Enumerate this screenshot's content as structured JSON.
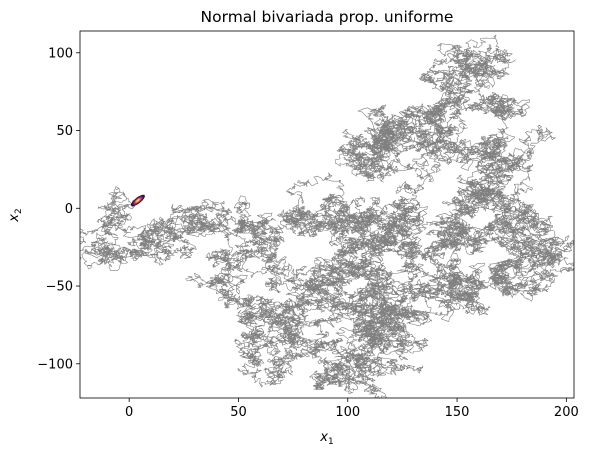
{
  "chart_data": {
    "type": "line",
    "title": "Normal bivariada prop. uniforme",
    "xlabel": "x",
    "xlabel_sub": "1",
    "ylabel": "x",
    "ylabel_sub": "2",
    "xlim": [
      -22.5,
      203.5
    ],
    "ylim": [
      -122,
      114
    ],
    "xticks": [
      0,
      50,
      100,
      150,
      200
    ],
    "xtick_labels": [
      "0",
      "50",
      "100",
      "150",
      "200"
    ],
    "yticks": [
      100,
      50,
      0,
      -50,
      -100
    ],
    "ytick_labels": [
      "100",
      "50",
      "0",
      "−50",
      "−100"
    ],
    "grid": false,
    "series": [
      {
        "kind": "random-walk-trace",
        "color": "#808080",
        "waypoints": [
          [
            0,
            0
          ],
          [
            -4,
            -5
          ],
          [
            -10,
            -12
          ],
          [
            -12,
            -22
          ],
          [
            -10,
            -32
          ],
          [
            -5,
            -30
          ],
          [
            5,
            -20
          ],
          [
            10,
            -18
          ],
          [
            18,
            -25
          ],
          [
            25,
            -22
          ],
          [
            28,
            -10
          ],
          [
            25,
            0
          ],
          [
            32,
            -5
          ],
          [
            38,
            -15
          ],
          [
            40,
            -30
          ],
          [
            42,
            -45
          ],
          [
            45,
            -55
          ],
          [
            55,
            -60
          ],
          [
            65,
            -58
          ],
          [
            75,
            -60
          ],
          [
            80,
            -65
          ],
          [
            72,
            -75
          ],
          [
            65,
            -85
          ],
          [
            75,
            -95
          ],
          [
            85,
            -90
          ],
          [
            95,
            -80
          ],
          [
            105,
            -75
          ],
          [
            110,
            -65
          ],
          [
            115,
            -62
          ],
          [
            120,
            -70
          ],
          [
            115,
            -85
          ],
          [
            108,
            -95
          ],
          [
            100,
            -100
          ],
          [
            108,
            -108
          ],
          [
            115,
            -100
          ],
          [
            120,
            -85
          ],
          [
            125,
            -75
          ],
          [
            130,
            -60
          ],
          [
            135,
            -50
          ],
          [
            140,
            -45
          ],
          [
            150,
            -50
          ],
          [
            158,
            -45
          ],
          [
            165,
            -40
          ],
          [
            175,
            -45
          ],
          [
            185,
            -40
          ],
          [
            190,
            -30
          ],
          [
            182,
            -20
          ],
          [
            175,
            -10
          ],
          [
            172,
            0
          ],
          [
            165,
            -10
          ],
          [
            160,
            -25
          ],
          [
            150,
            -20
          ],
          [
            140,
            -10
          ],
          [
            130,
            -20
          ],
          [
            120,
            -25
          ],
          [
            110,
            -30
          ],
          [
            100,
            -35
          ],
          [
            95,
            -30
          ],
          [
            90,
            -20
          ],
          [
            88,
            -5
          ],
          [
            92,
            5
          ],
          [
            100,
            2
          ],
          [
            110,
            -5
          ],
          [
            120,
            -15
          ],
          [
            125,
            -10
          ],
          [
            128,
            0
          ],
          [
            125,
            15
          ],
          [
            118,
            25
          ],
          [
            115,
            35
          ],
          [
            115,
            40
          ],
          [
            120,
            42
          ],
          [
            125,
            35
          ],
          [
            130,
            40
          ],
          [
            128,
            50
          ],
          [
            132,
            55
          ],
          [
            138,
            62
          ],
          [
            145,
            65
          ],
          [
            150,
            70
          ],
          [
            155,
            75
          ],
          [
            152,
            85
          ],
          [
            148,
            92
          ],
          [
            150,
            100
          ],
          [
            155,
            102
          ],
          [
            160,
            95
          ],
          [
            162,
            85
          ],
          [
            160,
            75
          ],
          [
            165,
            68
          ],
          [
            170,
            60
          ],
          [
            172,
            50
          ],
          [
            168,
            40
          ],
          [
            172,
            30
          ],
          [
            168,
            22
          ],
          [
            165,
            10
          ],
          [
            170,
            2
          ],
          [
            178,
            5
          ],
          [
            182,
            -5
          ],
          [
            176,
            -15
          ],
          [
            178,
            -25
          ],
          [
            185,
            -35
          ],
          [
            192,
            -32
          ],
          [
            188,
            -45
          ],
          [
            178,
            -50
          ],
          [
            168,
            -45
          ],
          [
            160,
            -48
          ],
          [
            152,
            -52
          ],
          [
            145,
            -60
          ],
          [
            135,
            -55
          ],
          [
            128,
            -65
          ],
          [
            120,
            -75
          ],
          [
            112,
            -82
          ],
          [
            105,
            -92
          ],
          [
            110,
            -104
          ],
          [
            100,
            -110
          ],
          [
            90,
            -100
          ],
          [
            80,
            -95
          ],
          [
            70,
            -100
          ],
          [
            60,
            -95
          ],
          [
            55,
            -85
          ],
          [
            60,
            -75
          ],
          [
            70,
            -70
          ],
          [
            85,
            -72
          ],
          [
            95,
            -62
          ],
          [
            105,
            -55
          ],
          [
            112,
            -48
          ],
          [
            118,
            -40
          ],
          [
            110,
            -35
          ],
          [
            102,
            -40
          ],
          [
            96,
            -48
          ],
          [
            90,
            -55
          ],
          [
            85,
            -45
          ],
          [
            78,
            -40
          ],
          [
            70,
            -42
          ],
          [
            65,
            -35
          ],
          [
            58,
            -28
          ],
          [
            52,
            -22
          ],
          [
            55,
            -15
          ],
          [
            62,
            -10
          ],
          [
            70,
            -12
          ],
          [
            78,
            -8
          ],
          [
            84,
            -2
          ],
          [
            92,
            -10
          ],
          [
            100,
            -15
          ],
          [
            108,
            -12
          ],
          [
            115,
            -20
          ],
          [
            122,
            -30
          ],
          [
            130,
            -38
          ],
          [
            138,
            -30
          ],
          [
            145,
            -22
          ],
          [
            152,
            -15
          ],
          [
            158,
            -5
          ],
          [
            155,
            5
          ],
          [
            160,
            15
          ],
          [
            165,
            20
          ],
          [
            160,
            30
          ],
          [
            155,
            40
          ],
          [
            150,
            45
          ],
          [
            143,
            50
          ],
          [
            138,
            42
          ],
          [
            132,
            38
          ],
          [
            125,
            45
          ],
          [
            120,
            50
          ],
          [
            112,
            48
          ],
          [
            108,
            40
          ],
          [
            112,
            32
          ],
          [
            118,
            22
          ]
        ]
      }
    ],
    "annotations": [
      {
        "kind": "density-ellipse",
        "center": [
          4,
          5
        ],
        "colors": [
          "#2a0a3a",
          "#7a1a6a",
          "#d44842",
          "#f9a43a",
          "#fcf4a0"
        ]
      }
    ]
  }
}
